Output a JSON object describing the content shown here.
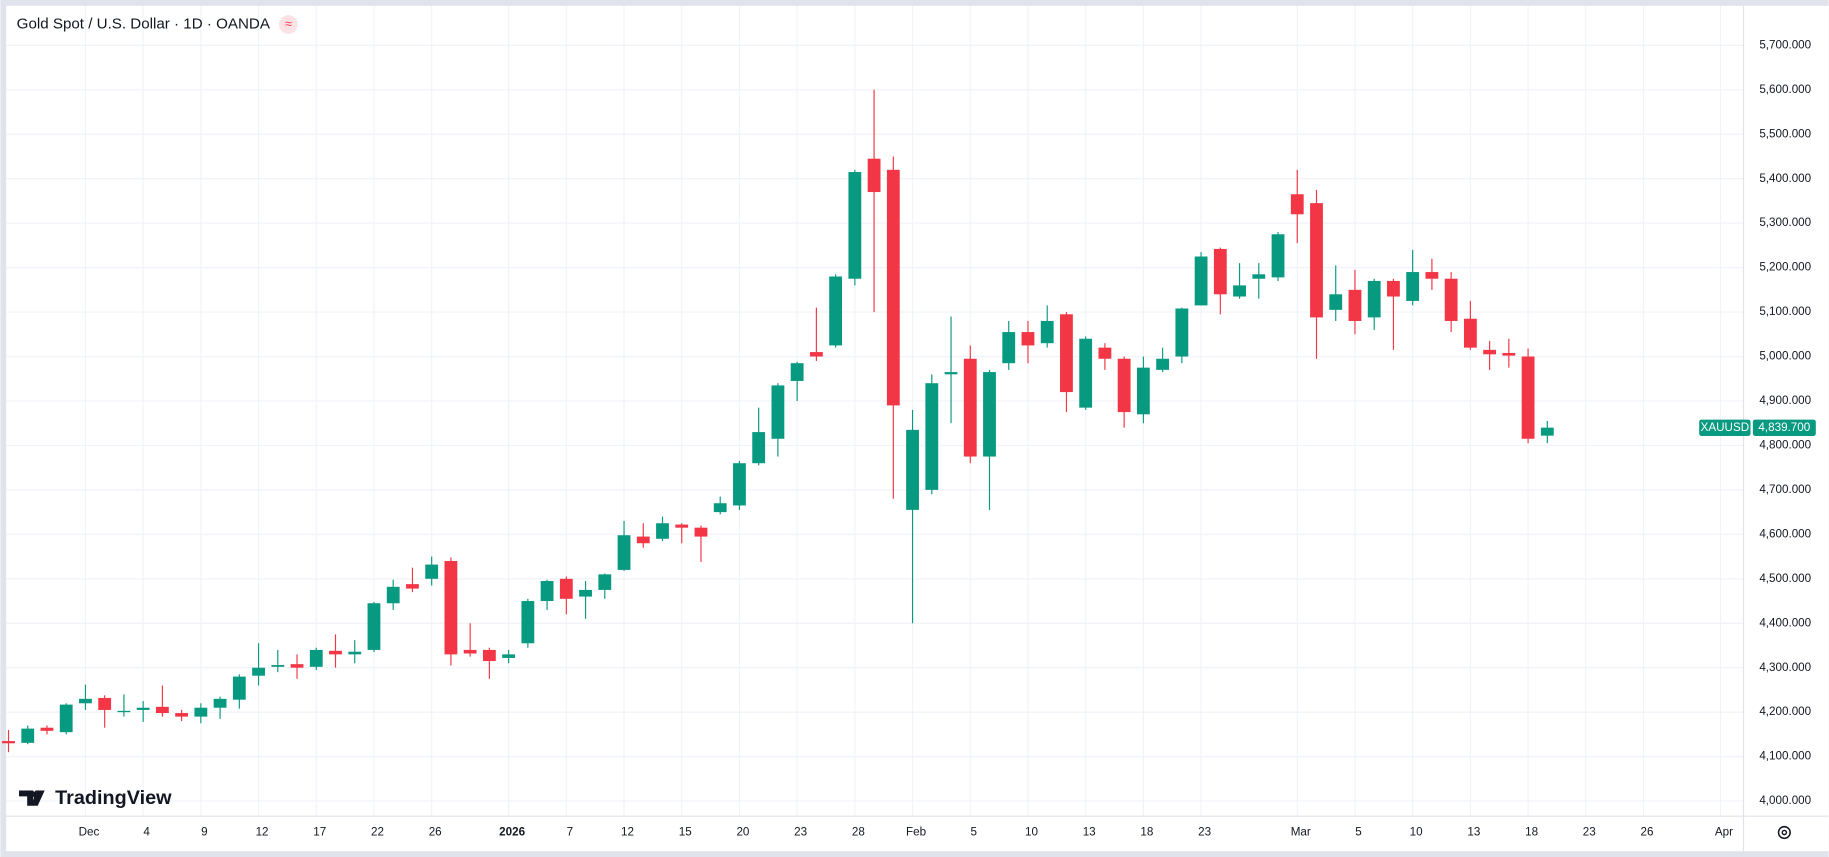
{
  "chart_data": {
    "type": "candlestick",
    "title": "Gold Spot / U.S. Dollar · 1D · OANDA",
    "header_icon": "≈",
    "watermark": "TradingView",
    "up_color": "#089981",
    "down_color": "#f23645",
    "grid": true,
    "open": [
      4135,
      4131,
      4165,
      4155,
      4220,
      4232,
      4200,
      4205,
      4212,
      4198,
      4190,
      4210,
      4228,
      4282,
      4302,
      4308,
      4302,
      4338,
      4330,
      4340,
      4445,
      4488,
      4500,
      4540,
      4340,
      4340,
      4322,
      4355,
      4450,
      4500,
      4460,
      4475,
      4520,
      4595,
      4590,
      4622,
      4615,
      4650,
      4665,
      4760,
      4815,
      4945,
      5010,
      5025,
      5175,
      5445,
      5420,
      4655,
      4700,
      4960,
      4995,
      4775,
      4985,
      5055,
      5030,
      5095,
      4885,
      5020,
      4995,
      4870,
      4970,
      5000,
      5115,
      5242,
      5135,
      5175,
      5178,
      5365,
      5345,
      5105,
      5150,
      5088,
      5170,
      5125,
      5190,
      5175,
      5085,
      5015,
      5008,
      5000,
      4822
    ],
    "high": [
      4160,
      4170,
      4170,
      4220,
      4262,
      4238,
      4240,
      4225,
      4260,
      4205,
      4220,
      4235,
      4285,
      4355,
      4340,
      4330,
      4345,
      4375,
      4362,
      4448,
      4498,
      4525,
      4550,
      4548,
      4400,
      4345,
      4340,
      4455,
      4498,
      4505,
      4495,
      4512,
      4630,
      4625,
      4640,
      4625,
      4620,
      4685,
      4765,
      4885,
      4940,
      4988,
      5110,
      5185,
      5420,
      5600,
      5450,
      4880,
      4960,
      5090,
      5025,
      4970,
      5080,
      5080,
      5115,
      5100,
      5045,
      5030,
      5000,
      5000,
      5020,
      5110,
      5235,
      5245,
      5210,
      5210,
      5280,
      5420,
      5375,
      5205,
      5195,
      5175,
      5175,
      5240,
      5220,
      5190,
      5125,
      5035,
      5040,
      5018,
      4855
    ],
    "low": [
      4110,
      4128,
      4150,
      4150,
      4205,
      4165,
      4190,
      4178,
      4190,
      4180,
      4175,
      4185,
      4208,
      4260,
      4290,
      4275,
      4295,
      4300,
      4310,
      4335,
      4430,
      4470,
      4485,
      4305,
      4325,
      4275,
      4310,
      4345,
      4430,
      4420,
      4410,
      4455,
      4518,
      4570,
      4585,
      4580,
      4538,
      4645,
      4655,
      4755,
      4775,
      4900,
      4990,
      5020,
      5160,
      5100,
      4680,
      4400,
      4690,
      4850,
      4760,
      4655,
      4970,
      4985,
      5020,
      4875,
      4880,
      4970,
      4840,
      4850,
      4965,
      4985,
      5115,
      5095,
      5130,
      5130,
      5170,
      5255,
      4995,
      5080,
      5050,
      5060,
      5015,
      5115,
      5150,
      5055,
      5015,
      4970,
      4975,
      4805,
      4805
    ],
    "close": [
      4130,
      4163,
      4158,
      4217,
      4230,
      4205,
      4203,
      4210,
      4198,
      4190,
      4210,
      4230,
      4280,
      4300,
      4306,
      4300,
      4340,
      4330,
      4336,
      4445,
      4482,
      4478,
      4532,
      4330,
      4332,
      4315,
      4330,
      4450,
      4495,
      4455,
      4475,
      4510,
      4598,
      4580,
      4625,
      4615,
      4595,
      4670,
      4760,
      4830,
      4935,
      4985,
      5000,
      5180,
      5415,
      5370,
      4890,
      4835,
      4940,
      4965,
      4775,
      4965,
      5055,
      5025,
      5080,
      4920,
      5040,
      4995,
      4875,
      4975,
      4995,
      5108,
      5225,
      5140,
      5160,
      5185,
      5275,
      5320,
      5088,
      5140,
      5080,
      5170,
      5135,
      5190,
      5175,
      5080,
      5020,
      5005,
      5002,
      4815,
      4840
    ],
    "xlim": [
      -0.12,
      90.2
    ],
    "xticks": [
      {
        "value": 4,
        "label": "Dec"
      },
      {
        "value": 7,
        "label": "4"
      },
      {
        "value": 10,
        "label": "9"
      },
      {
        "value": 13,
        "label": "12"
      },
      {
        "value": 16,
        "label": "17"
      },
      {
        "value": 19,
        "label": "22"
      },
      {
        "value": 22,
        "label": "26"
      },
      {
        "value": 26,
        "label": "2026"
      },
      {
        "value": 29,
        "label": "7"
      },
      {
        "value": 32,
        "label": "12"
      },
      {
        "value": 35,
        "label": "15"
      },
      {
        "value": 38,
        "label": "20"
      },
      {
        "value": 41,
        "label": "23"
      },
      {
        "value": 44,
        "label": "28"
      },
      {
        "value": 47,
        "label": "Feb"
      },
      {
        "value": 50,
        "label": "5"
      },
      {
        "value": 53,
        "label": "10"
      },
      {
        "value": 56,
        "label": "13"
      },
      {
        "value": 59,
        "label": "18"
      },
      {
        "value": 62,
        "label": "23"
      },
      {
        "value": 67,
        "label": "Mar"
      },
      {
        "value": 70,
        "label": "5"
      },
      {
        "value": 73,
        "label": "10"
      },
      {
        "value": 76,
        "label": "13"
      },
      {
        "value": 79,
        "label": "18"
      },
      {
        "value": 82,
        "label": "23"
      },
      {
        "value": 85,
        "label": "26"
      },
      {
        "value": 89,
        "label": "Apr"
      }
    ],
    "ylim": [
      3966,
      5781
    ],
    "yticks": [
      {
        "value": 4000,
        "label": "4,000.000"
      },
      {
        "value": 4100,
        "label": "4,100.000"
      },
      {
        "value": 4200,
        "label": "4,200.000"
      },
      {
        "value": 4300,
        "label": "4,300.000"
      },
      {
        "value": 4400,
        "label": "4,400.000"
      },
      {
        "value": 4500,
        "label": "4,500.000"
      },
      {
        "value": 4600,
        "label": "4,600.000"
      },
      {
        "value": 4700,
        "label": "4,700.000"
      },
      {
        "value": 4800,
        "label": "4,800.000"
      },
      {
        "value": 4900,
        "label": "4,900.000"
      },
      {
        "value": 5000,
        "label": "5,000.000"
      },
      {
        "value": 5100,
        "label": "5,100.000"
      },
      {
        "value": 5200,
        "label": "5,200.000"
      },
      {
        "value": 5300,
        "label": "5,300.000"
      },
      {
        "value": 5400,
        "label": "5,400.000"
      },
      {
        "value": 5500,
        "label": "5,500.000"
      },
      {
        "value": 5600,
        "label": "5,600.000"
      },
      {
        "value": 5700,
        "label": "5,700.000"
      }
    ],
    "last_price": {
      "symbol": "XAUUSD",
      "value": 4839.7,
      "label": "4,839.700"
    }
  }
}
